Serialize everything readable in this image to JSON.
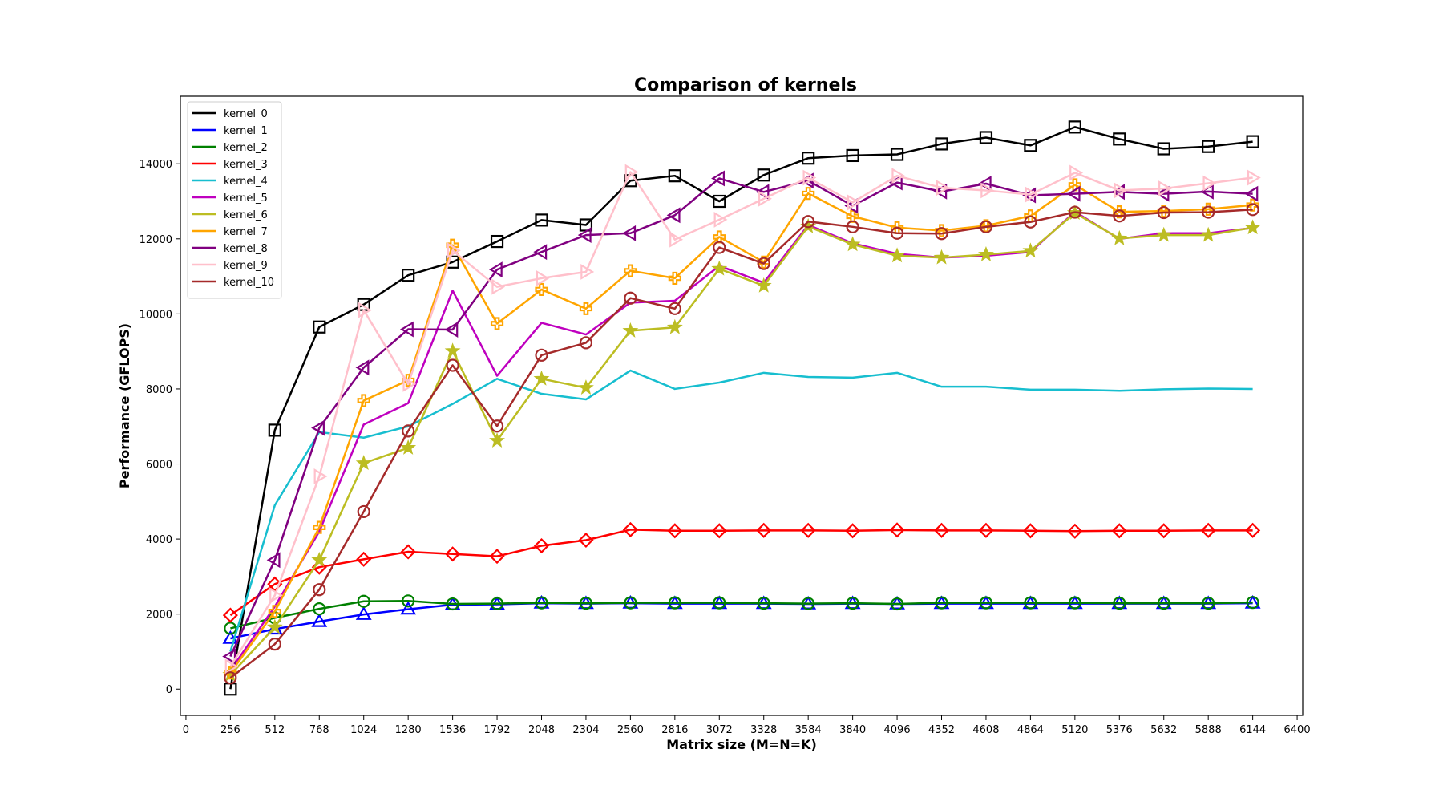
{
  "chart_data": {
    "type": "line",
    "title": "Comparison of kernels",
    "xlabel": "Matrix size (M=N=K)",
    "ylabel": "Performance (GFLOPS)",
    "xlim": [
      -32,
      6432
    ],
    "ylim": [
      -700,
      15800
    ],
    "x_ticks": [
      0,
      256,
      512,
      768,
      1024,
      1280,
      1536,
      1792,
      2048,
      2304,
      2560,
      2816,
      3072,
      3328,
      3584,
      3840,
      4096,
      4352,
      4608,
      4864,
      5120,
      5376,
      5632,
      5888,
      6144,
      6400
    ],
    "y_ticks": [
      0,
      2000,
      4000,
      6000,
      8000,
      10000,
      12000,
      14000
    ],
    "grid": false,
    "legend_position": "top-left",
    "x": [
      256,
      512,
      768,
      1024,
      1280,
      1536,
      1792,
      2048,
      2304,
      2560,
      2816,
      3072,
      3328,
      3584,
      3840,
      4096,
      4352,
      4608,
      4864,
      5120,
      5376,
      5632,
      5888,
      6144
    ],
    "series": [
      {
        "name": "kernel_0",
        "color": "#000000",
        "marker": "square",
        "values": [
          0,
          6900,
          9650,
          10250,
          11030,
          11380,
          11930,
          12500,
          12370,
          13550,
          13680,
          13000,
          13700,
          14150,
          14220,
          14250,
          14530,
          14700,
          14490,
          14980,
          14660,
          14400,
          14460,
          14590
        ]
      },
      {
        "name": "kernel_1",
        "color": "#0000ff",
        "marker": "triangle-up",
        "values": [
          1350,
          1600,
          1800,
          1990,
          2130,
          2250,
          2260,
          2290,
          2280,
          2290,
          2280,
          2280,
          2280,
          2270,
          2280,
          2270,
          2280,
          2280,
          2280,
          2280,
          2280,
          2280,
          2280,
          2290
        ]
      },
      {
        "name": "kernel_2",
        "color": "#008000",
        "marker": "circle",
        "values": [
          1620,
          1900,
          2140,
          2340,
          2350,
          2270,
          2280,
          2300,
          2290,
          2300,
          2300,
          2300,
          2290,
          2280,
          2290,
          2270,
          2300,
          2300,
          2300,
          2300,
          2290,
          2290,
          2290,
          2310
        ]
      },
      {
        "name": "kernel_3",
        "color": "#ff0000",
        "marker": "diamond",
        "values": [
          1970,
          2800,
          3250,
          3460,
          3660,
          3600,
          3540,
          3820,
          3970,
          4250,
          4220,
          4220,
          4230,
          4230,
          4220,
          4240,
          4230,
          4230,
          4220,
          4210,
          4220,
          4220,
          4230,
          4230
        ]
      },
      {
        "name": "kernel_4",
        "color": "#17becf",
        "marker": "none",
        "values": [
          1000,
          4900,
          6850,
          6700,
          7000,
          7600,
          8270,
          7870,
          7720,
          8490,
          8000,
          8170,
          8430,
          8320,
          8300,
          8430,
          8060,
          8060,
          7980,
          7980,
          7950,
          7990,
          8010,
          8000
        ]
      },
      {
        "name": "kernel_5",
        "color": "#bf00bf",
        "marker": "none",
        "values": [
          500,
          2200,
          4200,
          7050,
          7620,
          10620,
          8350,
          9760,
          9450,
          10300,
          10350,
          11280,
          10830,
          12370,
          11880,
          11600,
          11500,
          11550,
          11650,
          12720,
          12000,
          12150,
          12150,
          12290
        ]
      },
      {
        "name": "kernel_6",
        "color": "#bcbd22",
        "marker": "star",
        "values": [
          380,
          1650,
          3440,
          6020,
          6430,
          9010,
          6620,
          8270,
          8030,
          9550,
          9640,
          11200,
          10750,
          12330,
          11850,
          11550,
          11500,
          11580,
          11680,
          12690,
          12010,
          12100,
          12100,
          12300
        ]
      },
      {
        "name": "kernel_7",
        "color": "#ffa500",
        "marker": "plus",
        "values": [
          430,
          2070,
          4310,
          7690,
          8230,
          11830,
          9740,
          10650,
          10140,
          11150,
          10950,
          12050,
          11380,
          13210,
          12600,
          12300,
          12220,
          12350,
          12610,
          13440,
          12720,
          12740,
          12790,
          12900
        ]
      },
      {
        "name": "kernel_8",
        "color": "#800080",
        "marker": "triangle-left",
        "values": [
          870,
          3440,
          6960,
          8570,
          9590,
          9580,
          11180,
          11650,
          12100,
          12150,
          12630,
          13610,
          13250,
          13550,
          12880,
          13500,
          13260,
          13470,
          13160,
          13200,
          13250,
          13200,
          13260,
          13200
        ]
      },
      {
        "name": "kernel_9",
        "color": "#ffc0cb",
        "marker": "triangle-right",
        "values": [
          600,
          2500,
          5670,
          10100,
          8130,
          11690,
          10720,
          10950,
          11120,
          13780,
          11980,
          12510,
          13070,
          13630,
          12970,
          13680,
          13360,
          13290,
          13180,
          13760,
          13290,
          13340,
          13480,
          13630
        ]
      },
      {
        "name": "kernel_10",
        "color": "#a52a2a",
        "marker": "circle",
        "values": [
          300,
          1200,
          2650,
          4730,
          6880,
          8630,
          7010,
          8900,
          9230,
          10420,
          10140,
          11770,
          11340,
          12460,
          12320,
          12150,
          12140,
          12320,
          12450,
          12710,
          12610,
          12700,
          12710,
          12780
        ]
      }
    ]
  }
}
